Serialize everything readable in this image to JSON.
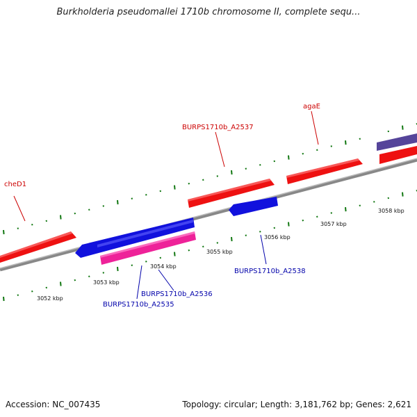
{
  "title": "Burkholderia pseudomallei 1710b chromosome II, complete sequ...",
  "footer": {
    "accession": "Accession: NC_007435",
    "summary": "Topology: circular; Length: 3,181,762 bp; Genes: 2,621"
  },
  "colors": {
    "forward_gene": "#ee1111",
    "reverse_gene": "#1111dd",
    "highlight_gene": "#ee2299",
    "other_gene": "#55449a",
    "backbone": "#888888",
    "tick": "#117711",
    "forward_label": "#cc0000",
    "reverse_label": "#0000aa"
  },
  "kbp_ticks": [
    "3052 kbp",
    "3053 kbp",
    "3054 kbp",
    "3055 kbp",
    "3056 kbp",
    "3057 kbp",
    "3058 kbp"
  ],
  "genes": [
    {
      "name": "cheD1",
      "strand": "forward"
    },
    {
      "name": "BURPS1710b_A2537",
      "strand": "forward"
    },
    {
      "name": "agaE",
      "strand": "forward"
    },
    {
      "name": "BURPS1710b_A2536",
      "strand": "reverse"
    },
    {
      "name": "BURPS1710b_A2535",
      "strand": "reverse"
    },
    {
      "name": "BURPS1710b_A2538",
      "strand": "reverse"
    }
  ]
}
